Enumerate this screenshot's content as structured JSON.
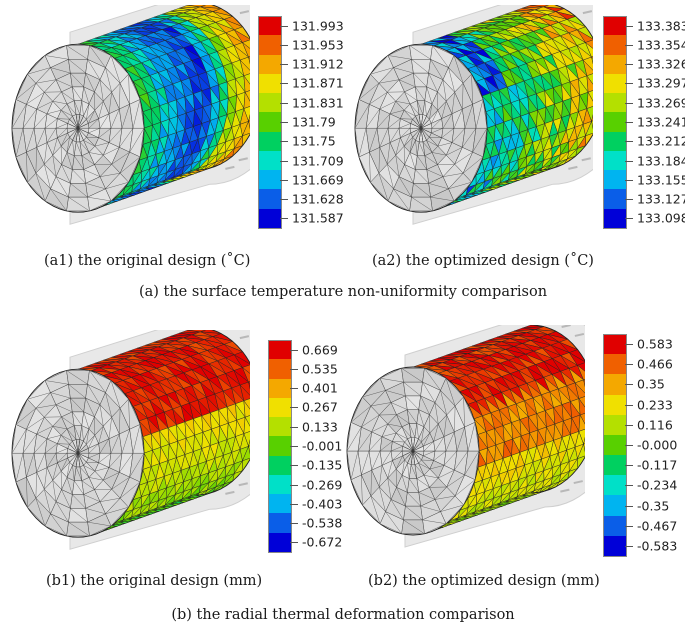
{
  "colors": {
    "scale": [
      "#0000d8",
      "#0a5ee8",
      "#00b4f0",
      "#00e0c8",
      "#00d060",
      "#58d000",
      "#b4e000",
      "#f0e000",
      "#f4a800",
      "#f06000",
      "#e00000"
    ],
    "mesh_line": "#222222",
    "end_face": "#d4d4d4",
    "shell": "#e8e8e8"
  },
  "panels": {
    "a1": {
      "caption": "(a1) the original design (˚C)",
      "legend_ticks": [
        "131.993",
        "131.953",
        "131.912",
        "131.871",
        "131.831",
        "131.79",
        "131.75",
        "131.709",
        "131.669",
        "131.628",
        "131.587"
      ],
      "surface_pattern": "bands-axial"
    },
    "a2": {
      "caption": "(a2) the optimized design (˚C)",
      "legend_ticks": [
        "133.383",
        "133.354",
        "133.326",
        "133.297",
        "133.269",
        "133.241",
        "133.212",
        "133.184",
        "133.155",
        "133.127",
        "133.098"
      ],
      "surface_pattern": "mixed-green"
    },
    "b1": {
      "caption": "(b1) the original design (mm)",
      "legend_ticks": [
        "0.669",
        "0.535",
        "0.401",
        "0.267",
        "0.133",
        "-0.001",
        "-0.135",
        "-0.269",
        "-0.403",
        "-0.538",
        "-0.672"
      ],
      "surface_pattern": "red-top-green-bottom"
    },
    "b2": {
      "caption": "(b2) the optimized design (mm)",
      "legend_ticks": [
        "0.583",
        "0.466",
        "0.35",
        "0.233",
        "0.116",
        "-0.000",
        "-0.117",
        "-0.234",
        "-0.35",
        "-0.467",
        "-0.583"
      ],
      "surface_pattern": "red-top-yellow-bottom"
    }
  },
  "section_captions": {
    "a": "(a) the surface temperature non-uniformity comparison",
    "b": "(b) the radial thermal deformation comparison"
  }
}
